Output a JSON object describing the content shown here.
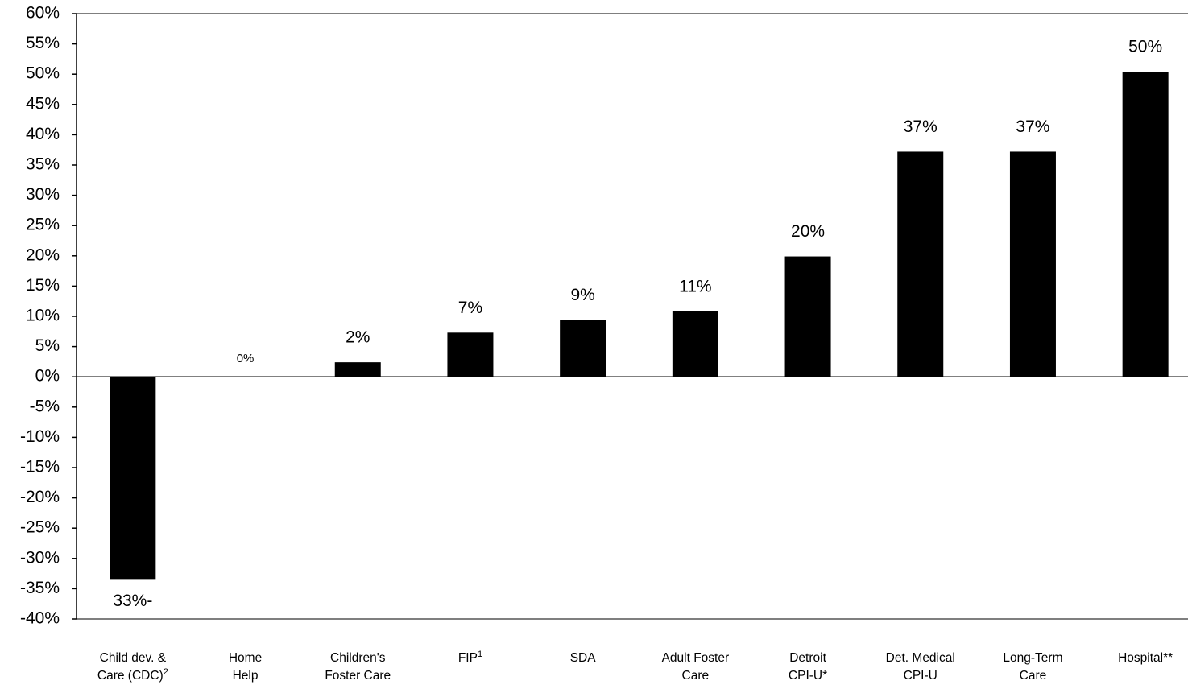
{
  "chart_data": {
    "type": "bar",
    "categories": [
      "Child dev. &\nCare (CDC)",
      "Home\nHelp",
      "Children's\nFoster Care",
      "FIP",
      "SDA",
      "Adult Foster\nCare",
      "Detroit\nCPI-U*",
      "Det. Medical\nCPI-U",
      "Long-Term\nCare",
      "Hospital**"
    ],
    "category_notes": [
      "2",
      null,
      null,
      "1",
      null,
      null,
      null,
      null,
      null,
      null
    ],
    "values": [
      -33.4,
      0,
      2.4,
      7.3,
      9.4,
      10.8,
      19.9,
      37.2,
      37.2,
      50.4
    ],
    "value_labels": [
      "33%-",
      "0%",
      "2%",
      "7%",
      "9%",
      "11%",
      "20%",
      "37%",
      "37%",
      "50%"
    ],
    "color": "#000000",
    "ylim": [
      -40,
      60
    ],
    "yticks": [
      {
        "value": -40,
        "label": "-40%"
      },
      {
        "value": -35,
        "label": "-35%"
      },
      {
        "value": -30,
        "label": "-30%"
      },
      {
        "value": -25,
        "label": "-25%"
      },
      {
        "value": -20,
        "label": "-20%"
      },
      {
        "value": -15,
        "label": "-15%"
      },
      {
        "value": -10,
        "label": "-10%"
      },
      {
        "value": -5,
        "label": "-5%"
      },
      {
        "value": 0,
        "label": "0%"
      },
      {
        "value": 5,
        "label": "5%"
      },
      {
        "value": 10,
        "label": "10%"
      },
      {
        "value": 15,
        "label": "15%"
      },
      {
        "value": 20,
        "label": "20%"
      },
      {
        "value": 25,
        "label": "25%"
      },
      {
        "value": 30,
        "label": "30%"
      },
      {
        "value": 35,
        "label": "35%"
      },
      {
        "value": 40,
        "label": "40%"
      },
      {
        "value": 45,
        "label": "45%"
      },
      {
        "value": 50,
        "label": "50%"
      },
      {
        "value": 55,
        "label": "55%"
      },
      {
        "value": 60,
        "label": "60%"
      }
    ],
    "grid": false
  }
}
